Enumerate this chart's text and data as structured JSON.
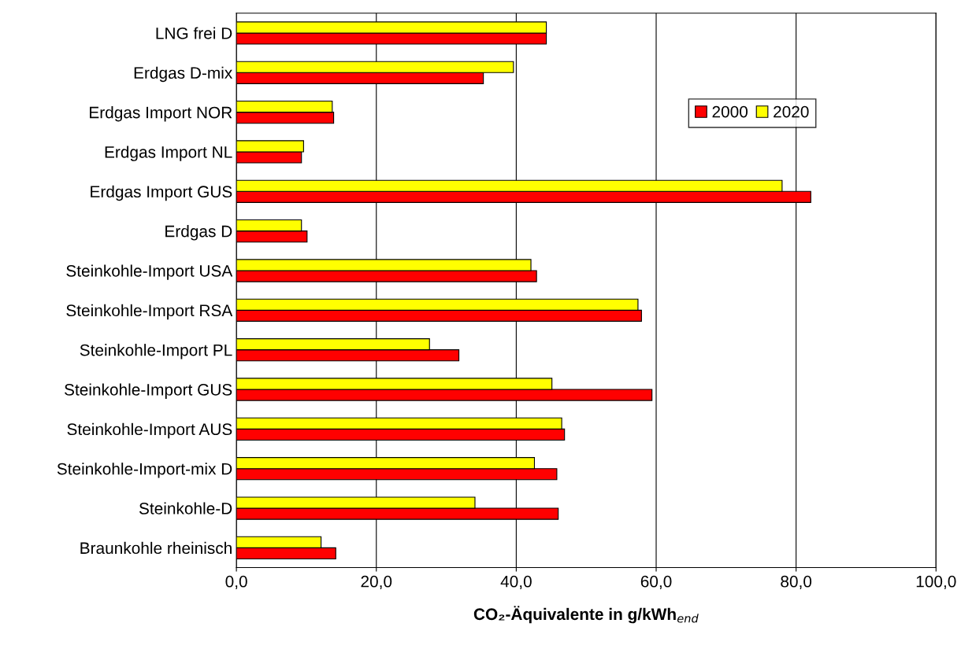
{
  "chart_data": {
    "type": "bar",
    "orientation": "horizontal",
    "categories": [
      "LNG frei D",
      "Erdgas D-mix",
      "Erdgas Import NOR",
      "Erdgas Import NL",
      "Erdgas Import GUS",
      "Erdgas D",
      "Steinkohle-Import USA",
      "Steinkohle-Import RSA",
      "Steinkohle-Import PL",
      "Steinkohle-Import GUS",
      "Steinkohle-Import AUS",
      "Steinkohle-Import-mix D",
      "Steinkohle-D",
      "Braunkohle rheinisch"
    ],
    "series": [
      {
        "name": "2000",
        "color": "#ff0000",
        "values": [
          44.3,
          35.3,
          13.9,
          9.3,
          82.1,
          10.1,
          42.9,
          57.9,
          31.8,
          59.4,
          46.9,
          45.8,
          46.0,
          14.2
        ]
      },
      {
        "name": "2020",
        "color": "#ffff00",
        "values": [
          44.3,
          39.6,
          13.7,
          9.6,
          78.0,
          9.3,
          42.1,
          57.4,
          27.6,
          45.1,
          46.5,
          42.6,
          34.1,
          12.1
        ]
      }
    ],
    "xlabel": "CO₂-Äquivalente in g/kWh$_{end}$",
    "xlim": [
      0,
      100
    ],
    "xticks": [
      {
        "value": 0,
        "label": "0,0"
      },
      {
        "value": 20,
        "label": "20,0"
      },
      {
        "value": 40,
        "label": "40,0"
      },
      {
        "value": 60,
        "label": "60,0"
      },
      {
        "value": 80,
        "label": "80,0"
      },
      {
        "value": 100,
        "label": "100,0"
      }
    ],
    "grid": "x",
    "legend": "top right"
  }
}
